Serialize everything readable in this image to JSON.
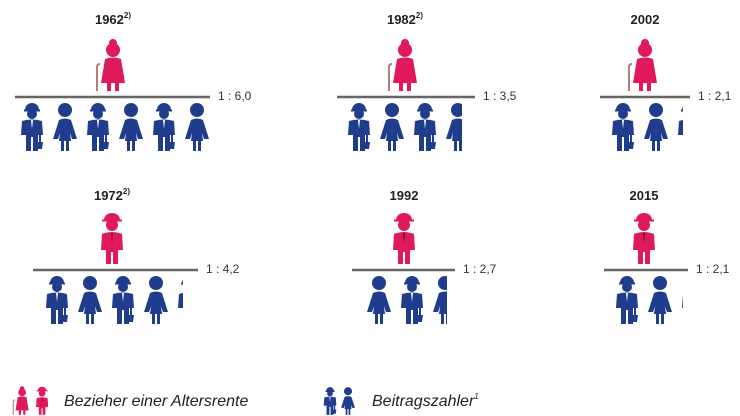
{
  "panels": [
    {
      "year": "1962",
      "note": "2)",
      "ratio": "1 : 6,0"
    },
    {
      "year": "1982",
      "note": "2)",
      "ratio": "1 : 3,5"
    },
    {
      "year": "2002",
      "ratio": "1 : 2,1"
    },
    {
      "year": "1972",
      "note": "2)",
      "ratio": "1 : 4,2"
    },
    {
      "year": "1992",
      "ratio": "1 : 2,7"
    },
    {
      "year": "2015",
      "ratio": "1 : 2,1"
    }
  ],
  "legend": {
    "pensioners": "Bezieher einer Altersrente",
    "contributors": "Beitragszahler",
    "contributors_note": "1"
  }
}
